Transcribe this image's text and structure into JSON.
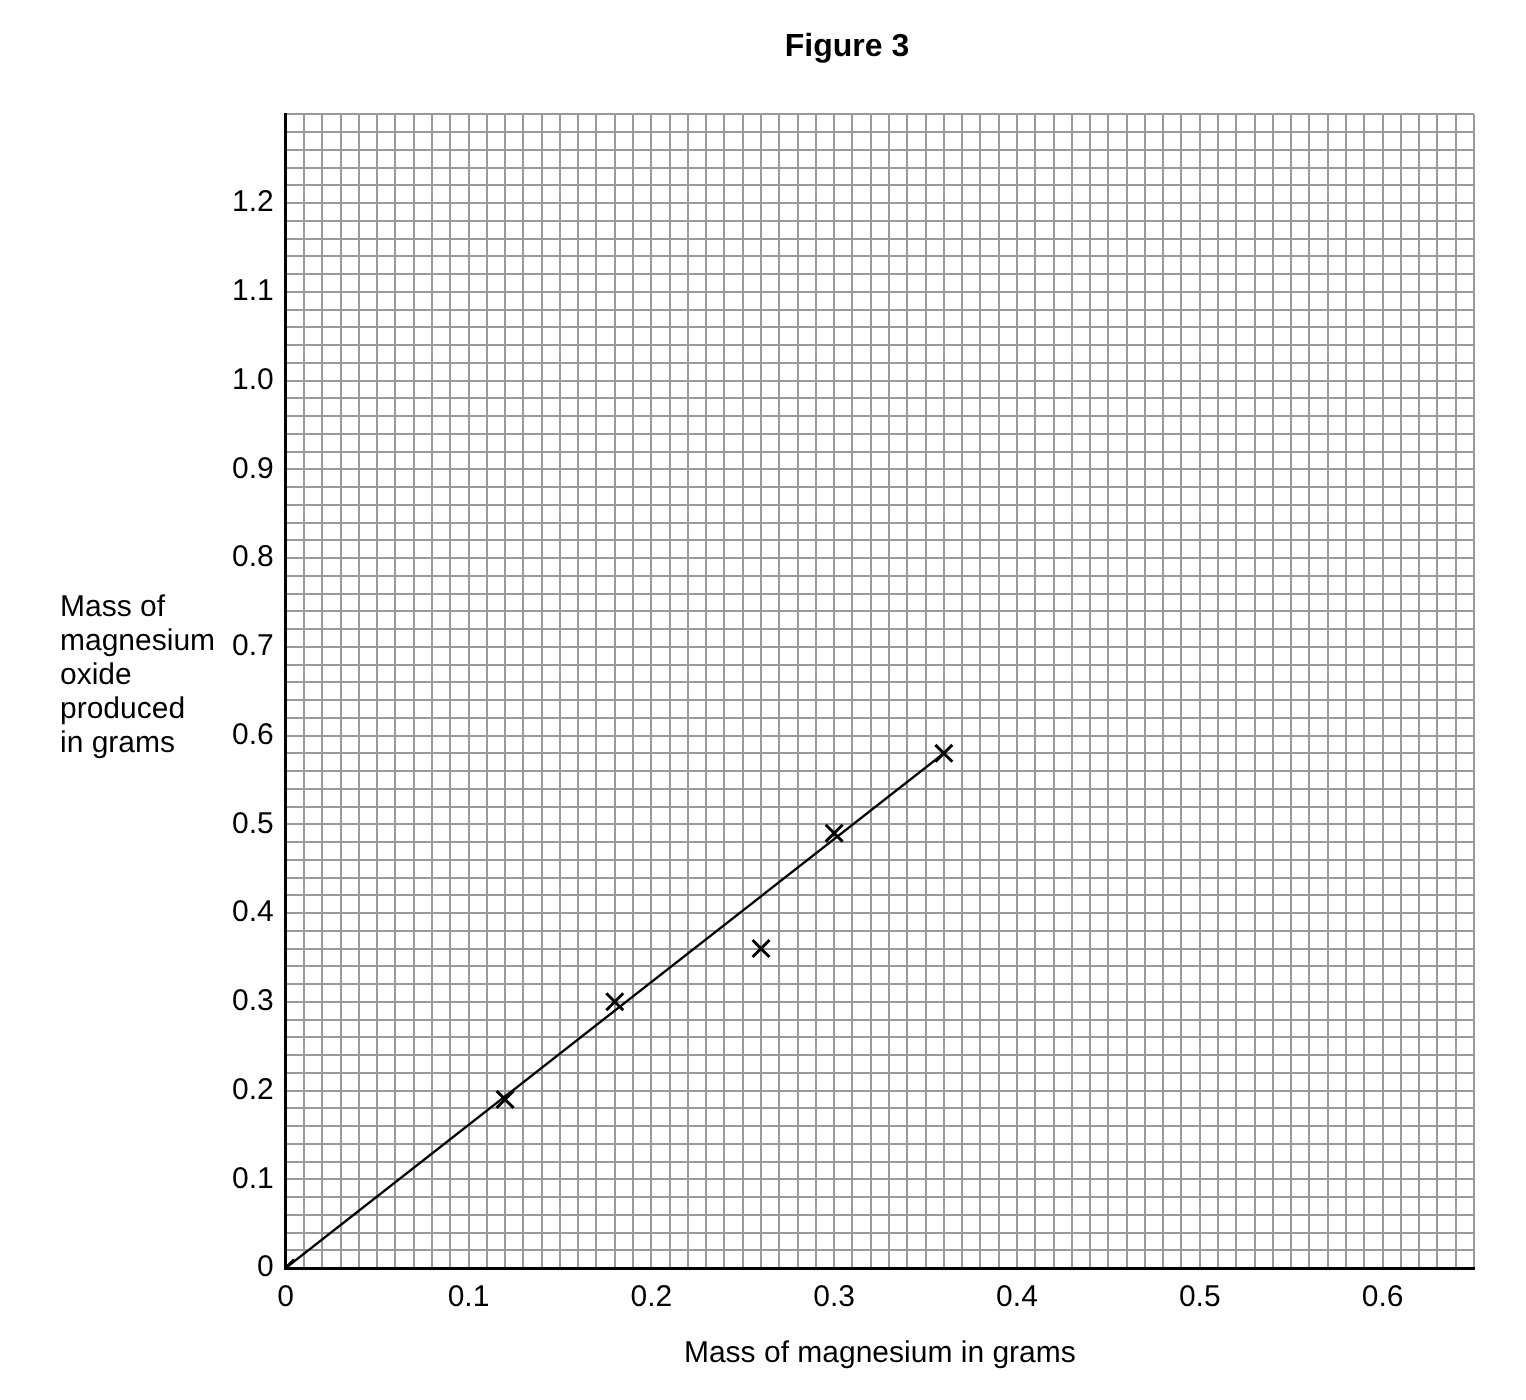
{
  "chart_data": {
    "type": "scatter",
    "title": "Figure 3",
    "xlabel": "Mass of magnesium in grams",
    "ylabel": "Mass of magnesium oxide produced in grams",
    "marker": "cross",
    "grid": true,
    "legend": false,
    "xlim": [
      0,
      0.65
    ],
    "ylim": [
      0,
      1.3
    ],
    "xticks": [
      0,
      {
        "value": 0.01,
        "label": null
      },
      {
        "value": 0.02,
        "label": null
      },
      {
        "value": 0.03,
        "label": null
      },
      {
        "value": 0.04,
        "label": null
      },
      {
        "value": 0.05,
        "label": null
      },
      {
        "value": 0.06,
        "label": null
      },
      {
        "value": 0.07,
        "label": null
      },
      {
        "value": 0.08,
        "label": null
      },
      {
        "value": 0.09,
        "label": null
      },
      0.1,
      {
        "value": 0.11,
        "label": null
      },
      {
        "value": 0.12,
        "label": null
      },
      {
        "value": 0.13,
        "label": null
      },
      {
        "value": 0.14,
        "label": null
      },
      {
        "value": 0.15,
        "label": null
      },
      {
        "value": 0.16,
        "label": null
      },
      {
        "value": 0.17,
        "label": null
      },
      {
        "value": 0.18,
        "label": null
      },
      {
        "value": 0.19,
        "label": null
      },
      0.2,
      {
        "value": 0.21,
        "label": null
      },
      {
        "value": 0.22,
        "label": null
      },
      {
        "value": 0.23,
        "label": null
      },
      {
        "value": 0.24,
        "label": null
      },
      {
        "value": 0.25,
        "label": null
      },
      {
        "value": 0.26,
        "label": null
      },
      {
        "value": 0.27,
        "label": null
      },
      {
        "value": 0.28,
        "label": null
      },
      {
        "value": 0.29,
        "label": null
      },
      0.3,
      {
        "value": 0.31,
        "label": null
      },
      {
        "value": 0.32,
        "label": null
      },
      {
        "value": 0.33,
        "label": null
      },
      {
        "value": 0.34,
        "label": null
      },
      {
        "value": 0.35,
        "label": null
      },
      {
        "value": 0.36,
        "label": null
      },
      {
        "value": 0.37,
        "label": null
      },
      {
        "value": 0.38,
        "label": null
      },
      {
        "value": 0.39,
        "label": null
      },
      0.4,
      {
        "value": 0.41,
        "label": null
      },
      {
        "value": 0.42,
        "label": null
      },
      {
        "value": 0.43,
        "label": null
      },
      {
        "value": 0.44,
        "label": null
      },
      {
        "value": 0.45,
        "label": null
      },
      {
        "value": 0.46,
        "label": null
      },
      {
        "value": 0.47,
        "label": null
      },
      {
        "value": 0.48,
        "label": null
      },
      {
        "value": 0.49,
        "label": null
      },
      0.5,
      {
        "value": 0.51,
        "label": null
      },
      {
        "value": 0.52,
        "label": null
      },
      {
        "value": 0.53,
        "label": null
      },
      {
        "value": 0.54,
        "label": null
      },
      {
        "value": 0.55,
        "label": null
      },
      {
        "value": 0.56,
        "label": null
      },
      {
        "value": 0.57,
        "label": null
      },
      {
        "value": 0.58,
        "label": null
      },
      {
        "value": 0.59,
        "label": null
      },
      0.6,
      {
        "value": 0.61,
        "label": null
      },
      {
        "value": 0.62,
        "label": null
      },
      {
        "value": 0.63,
        "label": null
      },
      {
        "value": 0.64,
        "label": null
      },
      {
        "value": 0.65,
        "label": null
      }
    ],
    "yticks": [
      0,
      {
        "value": 0.02,
        "label": null
      },
      {
        "value": 0.04,
        "label": null
      },
      {
        "value": 0.06,
        "label": null
      },
      {
        "value": 0.08,
        "label": null
      },
      0.1,
      {
        "value": 0.12,
        "label": null
      },
      {
        "value": 0.14,
        "label": null
      },
      {
        "value": 0.16,
        "label": null
      },
      {
        "value": 0.18,
        "label": null
      },
      0.2,
      {
        "value": 0.22,
        "label": null
      },
      {
        "value": 0.24,
        "label": null
      },
      {
        "value": 0.26,
        "label": null
      },
      {
        "value": 0.28,
        "label": null
      },
      0.3,
      {
        "value": 0.32,
        "label": null
      },
      {
        "value": 0.34,
        "label": null
      },
      {
        "value": 0.36,
        "label": null
      },
      {
        "value": 0.38,
        "label": null
      },
      0.4,
      {
        "value": 0.42,
        "label": null
      },
      {
        "value": 0.44,
        "label": null
      },
      {
        "value": 0.46,
        "label": null
      },
      {
        "value": 0.48,
        "label": null
      },
      0.5,
      {
        "value": 0.52,
        "label": null
      },
      {
        "value": 0.54,
        "label": null
      },
      {
        "value": 0.56,
        "label": null
      },
      {
        "value": 0.58,
        "label": null
      },
      0.6,
      {
        "value": 0.62,
        "label": null
      },
      {
        "value": 0.64,
        "label": null
      },
      {
        "value": 0.66,
        "label": null
      },
      {
        "value": 0.68,
        "label": null
      },
      0.7,
      {
        "value": 0.72,
        "label": null
      },
      {
        "value": 0.74,
        "label": null
      },
      {
        "value": 0.76,
        "label": null
      },
      {
        "value": 0.78,
        "label": null
      },
      0.8,
      {
        "value": 0.82,
        "label": null
      },
      {
        "value": 0.84,
        "label": null
      },
      {
        "value": 0.86,
        "label": null
      },
      {
        "value": 0.88,
        "label": null
      },
      0.9,
      {
        "value": 0.92,
        "label": null
      },
      {
        "value": 0.94,
        "label": null
      },
      {
        "value": 0.96,
        "label": null
      },
      {
        "value": 0.98,
        "label": null
      },
      {
        "value": 1,
        "label": "1.0"
      },
      {
        "value": 1.02,
        "label": null
      },
      {
        "value": 1.04,
        "label": null
      },
      {
        "value": 1.06,
        "label": null
      },
      {
        "value": 1.08,
        "label": null
      },
      1.1,
      {
        "value": 1.12,
        "label": null
      },
      {
        "value": 1.14,
        "label": null
      },
      {
        "value": 1.16,
        "label": null
      },
      {
        "value": 1.18,
        "label": null
      },
      1.2,
      {
        "value": 1.22,
        "label": null
      },
      {
        "value": 1.24,
        "label": null
      },
      {
        "value": 1.26,
        "label": null
      },
      {
        "value": 1.28,
        "label": null
      },
      {
        "value": 1.3,
        "label": null
      }
    ],
    "series": [
      {
        "type": "scatter",
        "color": "#000000",
        "x": [
          0,
          0.12,
          0.18,
          0.26,
          0.3,
          0.36
        ],
        "values": [
          0,
          0.19,
          0.3,
          0.36,
          0.49,
          0.58
        ]
      },
      {
        "type": "line",
        "color": "#000000",
        "marker": "none",
        "line_style": "solid",
        "x": [
          0,
          0.36
        ],
        "values": [
          0,
          0.58
        ]
      }
    ]
  }
}
